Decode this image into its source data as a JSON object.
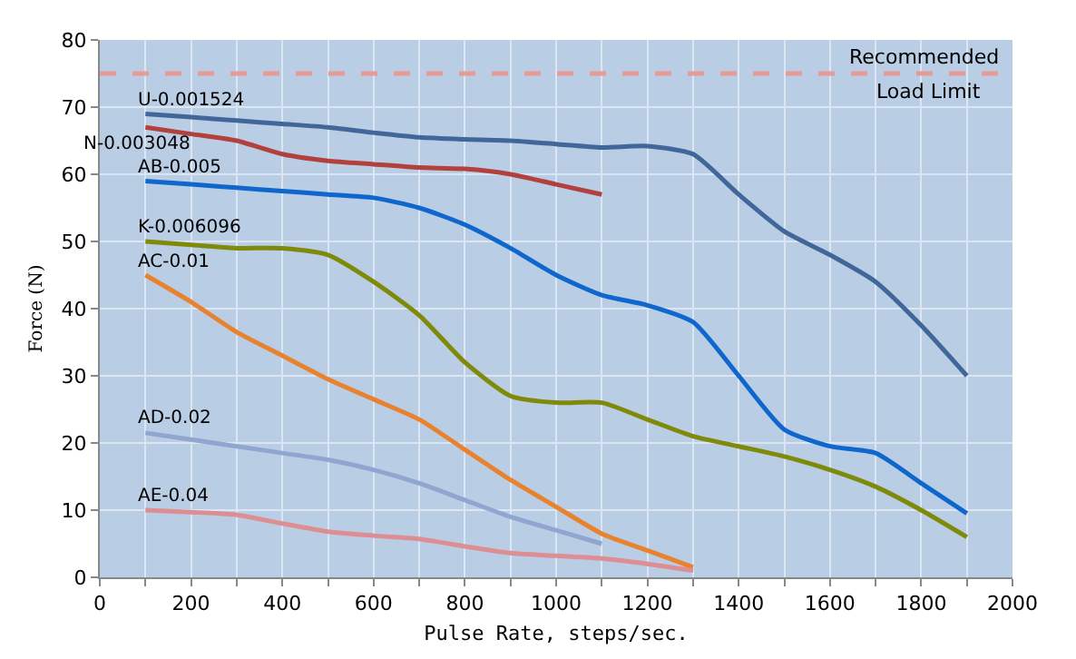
{
  "chart_data": {
    "type": "line",
    "xlabel": "Pulse Rate, steps/sec.",
    "ylabel": "Force (N)",
    "x": [
      100,
      200,
      300,
      400,
      500,
      600,
      700,
      800,
      900,
      1000,
      1100,
      1200,
      1300,
      1400,
      1500,
      1600,
      1700,
      1800,
      1900
    ],
    "series": [
      {
        "name": "U-0.001524",
        "color": "#41679a",
        "values": [
          69,
          68.5,
          68,
          67.5,
          67,
          66.2,
          65.5,
          65.2,
          65,
          64.5,
          64,
          64.2,
          63,
          57,
          51.5,
          48,
          44,
          37.5,
          30
        ]
      },
      {
        "name": "N-0.003048",
        "color": "#b2403c",
        "values": [
          67,
          66,
          65,
          63,
          62,
          61.5,
          61,
          60.8,
          60,
          58.5,
          57,
          null,
          null,
          null,
          null,
          null,
          null,
          null,
          null
        ]
      },
      {
        "name": "AB-0.005",
        "color": "#0f66cc",
        "values": [
          59,
          58.5,
          58,
          57.5,
          57,
          56.5,
          55,
          52.5,
          49,
          45,
          42,
          40.5,
          38,
          30,
          22,
          19.5,
          18.5,
          14,
          9.5
        ]
      },
      {
        "name": "K-0.006096",
        "color": "#7f8a0a",
        "values": [
          50,
          49.5,
          49,
          49,
          48,
          44,
          39,
          32,
          27,
          26,
          26,
          23.5,
          21,
          19.5,
          18,
          16,
          13.5,
          10,
          6
        ]
      },
      {
        "name": "AC-0.01",
        "color": "#e8822e",
        "values": [
          45,
          41,
          36.5,
          33,
          29.5,
          26.5,
          23.5,
          19,
          14.5,
          10.5,
          6.5,
          4,
          1.5,
          null,
          null,
          null,
          null,
          null,
          null
        ]
      },
      {
        "name": "AD-0.02",
        "color": "#90a6d0",
        "values": [
          21.5,
          20.5,
          19.5,
          18.5,
          17.5,
          16,
          14,
          11.5,
          9,
          7,
          5,
          null,
          null,
          null,
          null,
          null,
          null,
          null,
          null
        ]
      },
      {
        "name": "AE-0.04",
        "color": "#dc8e92",
        "values": [
          10,
          9.7,
          9.3,
          8,
          6.8,
          6.2,
          5.7,
          4.6,
          3.6,
          3.2,
          2.8,
          2,
          1,
          null,
          null,
          null,
          null,
          null,
          null
        ]
      }
    ],
    "xlim": [
      0,
      2000
    ],
    "xticks": [
      0,
      200,
      400,
      600,
      800,
      1000,
      1200,
      1400,
      1600,
      1800,
      2000
    ],
    "ylim": [
      0,
      80
    ],
    "yticks": [
      0,
      10,
      20,
      30,
      40,
      50,
      60,
      70,
      80
    ],
    "ref_lines": [
      {
        "axis": "y",
        "value": 75,
        "label": "Recommended\nLoad Limit",
        "color": "#e89a96",
        "line_style": "dashed"
      }
    ],
    "grid": true,
    "legend": false,
    "marker": "none",
    "line_style": "solid"
  }
}
